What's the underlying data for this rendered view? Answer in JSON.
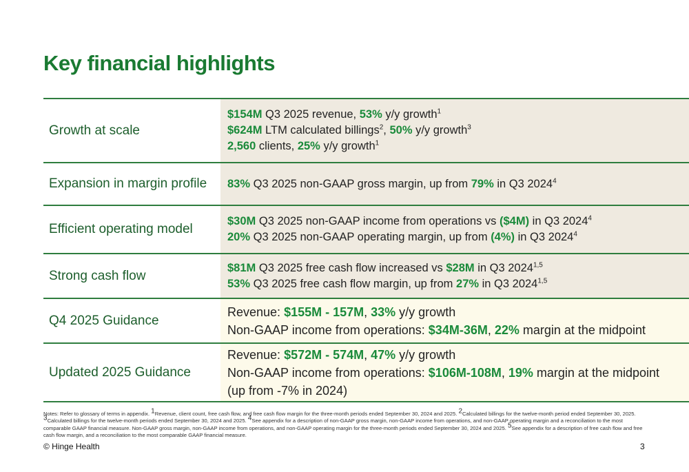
{
  "title": "Key financial highlights",
  "rows": [
    {
      "label": "Growth at scale",
      "guidance": false,
      "lines": [
        [
          {
            "t": "$154M",
            "g": true
          },
          {
            "t": " Q3 2025 revenue, "
          },
          {
            "t": "53%",
            "g": true
          },
          {
            "t": " y/y growth"
          },
          {
            "t": "1",
            "s": true
          }
        ],
        [
          {
            "t": "$624M",
            "g": true
          },
          {
            "t": " LTM calculated billings"
          },
          {
            "t": "2",
            "s": true
          },
          {
            "t": ", "
          },
          {
            "t": "50%",
            "g": true
          },
          {
            "t": " y/y growth"
          },
          {
            "t": "3",
            "s": true
          }
        ],
        [
          {
            "t": "2,560",
            "g": true
          },
          {
            "t": " clients, "
          },
          {
            "t": "25%",
            "g": true
          },
          {
            "t": " y/y growth"
          },
          {
            "t": "1",
            "s": true
          }
        ]
      ]
    },
    {
      "label": "Expansion in margin profile",
      "guidance": false,
      "lines": [
        [
          {
            "t": "83%",
            "g": true
          },
          {
            "t": " Q3 2025 non-GAAP gross margin, up from "
          },
          {
            "t": "79%",
            "g": true
          },
          {
            "t": " in Q3 2024"
          },
          {
            "t": "4",
            "s": true
          }
        ]
      ]
    },
    {
      "label": "Efficient operating model",
      "guidance": false,
      "lines": [
        [
          {
            "t": "$30M",
            "g": true
          },
          {
            "t": " Q3 2025 non-GAAP income from operations vs "
          },
          {
            "t": "($4M)",
            "g": true
          },
          {
            "t": " in Q3 2024"
          },
          {
            "t": "4",
            "s": true
          }
        ],
        [
          {
            "t": "20%",
            "g": true
          },
          {
            "t": " Q3 2025 non-GAAP operating margin, up from "
          },
          {
            "t": "(4%)",
            "g": true
          },
          {
            "t": " in Q3 2024"
          },
          {
            "t": "4",
            "s": true
          }
        ]
      ]
    },
    {
      "label": "Strong cash flow",
      "guidance": false,
      "lines": [
        [
          {
            "t": "$81M",
            "g": true
          },
          {
            "t": " Q3 2025 free cash flow increased vs "
          },
          {
            "t": "$28M",
            "g": true
          },
          {
            "t": " in Q3 2024"
          },
          {
            "t": "1,5",
            "s": true
          }
        ],
        [
          {
            "t": "53%",
            "g": true
          },
          {
            "t": " Q3 2025 free cash flow margin, up from "
          },
          {
            "t": "27%",
            "g": true
          },
          {
            "t": " in Q3 2024"
          },
          {
            "t": "1,5",
            "s": true
          }
        ]
      ]
    },
    {
      "label": "Q4 2025 Guidance",
      "guidance": true,
      "lines": [
        [
          {
            "t": "Revenue: "
          },
          {
            "t": "$155M - 157M",
            "g": true
          },
          {
            "t": ", "
          },
          {
            "t": "33%",
            "g": true
          },
          {
            "t": " y/y growth"
          }
        ],
        [
          {
            "t": "Non-GAAP income from operations: "
          },
          {
            "t": "$34M-36M",
            "g": true
          },
          {
            "t": ",  "
          },
          {
            "t": "22%",
            "g": true
          },
          {
            "t": " margin at the midpoint"
          }
        ]
      ]
    },
    {
      "label": "Updated 2025 Guidance",
      "guidance": true,
      "lines": [
        [
          {
            "t": "Revenue: "
          },
          {
            "t": "$572M - 574M",
            "g": true
          },
          {
            "t": ", "
          },
          {
            "t": "47%",
            "g": true
          },
          {
            "t": " y/y growth"
          }
        ],
        [
          {
            "t": "Non-GAAP income from operations: "
          },
          {
            "t": "$106M-108M",
            "g": true
          },
          {
            "t": ", "
          },
          {
            "t": "19%",
            "g": true
          },
          {
            "t": " margin at the midpoint"
          }
        ],
        [
          {
            "t": "(up from -7% in 2024)"
          }
        ]
      ]
    }
  ],
  "notes": [
    {
      "t": "Notes: Refer to glossary of terms in appendix. "
    },
    {
      "t": "1",
      "s": true
    },
    {
      "t": "Revenue, client count, free cash flow, and free cash flow margin for the three-month periods ended September 30, 2024 and 2025. "
    },
    {
      "t": "2",
      "s": true
    },
    {
      "t": "Calculated billings for the twelve-month period ended September 30, 2025. "
    },
    {
      "t": "3",
      "s": true
    },
    {
      "t": "Calculated billings for the twelve-month periods ended September 30, 2024 and 2025. "
    },
    {
      "t": "4",
      "s": true
    },
    {
      "t": "See appendix for a description of non-GAAP gross margin, non-GAAP income from operations, and non-GAAP operating margin and a reconciliation to the most comparable GAAP financial measure. Non-GAAP gross margin, non-GAAP income from operations, and non-GAAP operating margin for the three-month periods ended September 30, 2024 and 2025. "
    },
    {
      "t": "5",
      "s": true
    },
    {
      "t": "See appendix for a description of free cash flow and free cash flow margin, and a reconciliation to the most comparable GAAP financial measure."
    }
  ],
  "footer": {
    "brand": "© Hinge Health",
    "page": "3"
  },
  "colors": {
    "accent": "#1a8a3a",
    "rule": "#2e7d3e",
    "cell": "#efeae0",
    "guidance_cell": "#fdfaea"
  }
}
